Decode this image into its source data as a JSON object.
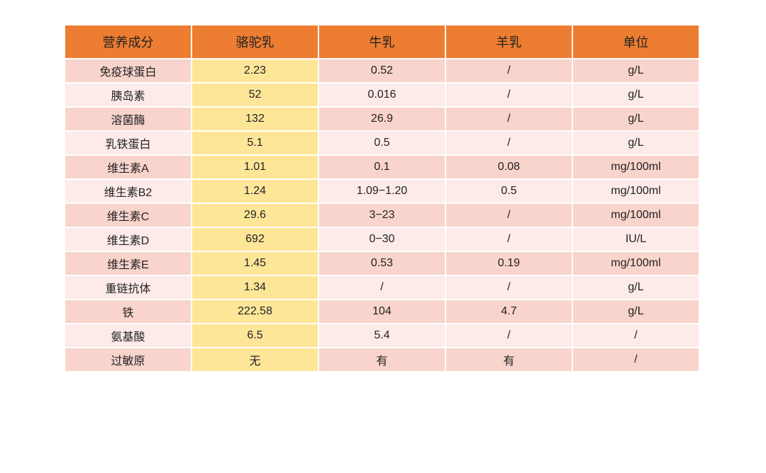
{
  "table": {
    "headers": [
      "营养成分",
      "骆驼乳",
      "牛乳",
      "羊乳",
      "单位"
    ],
    "rows": [
      [
        "免疫球蛋白",
        "2.23",
        "0.52",
        "/",
        "g/L"
      ],
      [
        "胰岛素",
        "52",
        "0.016",
        "/",
        "g/L"
      ],
      [
        "溶菌酶",
        "132",
        "26.9",
        "/",
        "g/L"
      ],
      [
        "乳铁蛋白",
        "5.1",
        "0.5",
        "/",
        "g/L"
      ],
      [
        "维生素A",
        "1.01",
        "0.1",
        "0.08",
        "mg/100ml"
      ],
      [
        "维生素B2",
        "1.24",
        "1.09−1.20",
        "0.5",
        "mg/100ml"
      ],
      [
        "维生素C",
        "29.6",
        "3−23",
        "/",
        "mg/100ml"
      ],
      [
        "维生素D",
        "692",
        "0−30",
        "/",
        "IU/L"
      ],
      [
        "维生素E",
        "1.45",
        "0.53",
        "0.19",
        "mg/100ml"
      ],
      [
        "重链抗体",
        "1.34",
        "/",
        "/",
        "g/L"
      ],
      [
        "铁",
        "222.58",
        "104",
        "4.7",
        "g/L"
      ],
      [
        "氨基酸",
        "6.5",
        "5.4",
        "/",
        "/"
      ],
      [
        "过敏原",
        "无",
        "有",
        "有",
        "/"
      ]
    ]
  },
  "colors": {
    "header": "#ed7d31",
    "row_odd": "#f8d4cc",
    "row_even": "#fcebe8",
    "highlight_column": "#fee699"
  }
}
